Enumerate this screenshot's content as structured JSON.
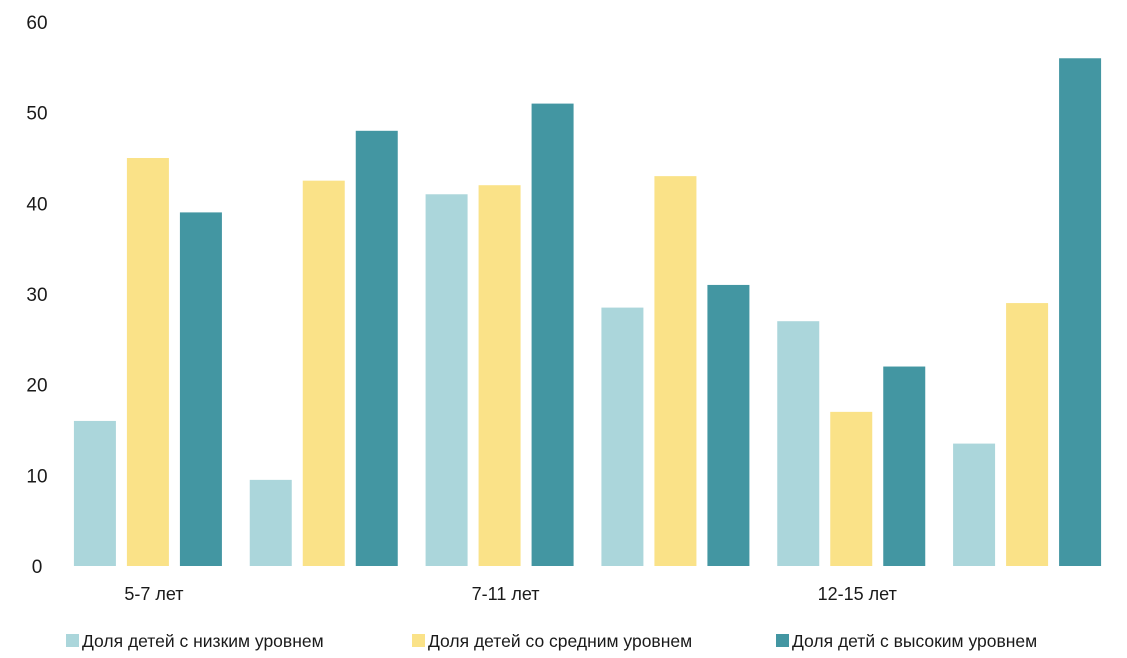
{
  "chart_data": {
    "type": "bar",
    "categories": [
      "5-7 лет",
      "",
      "7-11 лет",
      "",
      "12-15 лет",
      ""
    ],
    "series": [
      {
        "name": "Доля детей с  низким уровнем",
        "color": "#abd6db",
        "values": [
          16,
          9.5,
          41,
          28.5,
          27,
          13.5
        ]
      },
      {
        "name": "Доля детей со средним уровнем",
        "color": "#fae288",
        "values": [
          45,
          42.5,
          42,
          43,
          17,
          29
        ]
      },
      {
        "name": "Доля детй с высоким уровнем",
        "color": "#4396a2",
        "values": [
          39,
          48,
          51,
          31,
          22,
          56
        ]
      }
    ],
    "ylim": [
      0,
      60
    ],
    "yticks": [
      0,
      10,
      20,
      30,
      40,
      50,
      60
    ],
    "grid": false,
    "legend_position": "bottom"
  }
}
